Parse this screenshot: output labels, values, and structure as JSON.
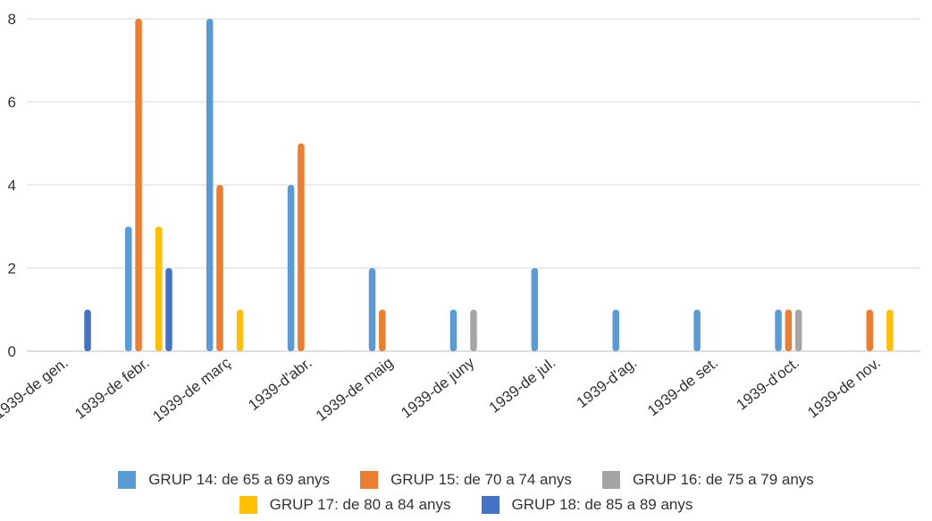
{
  "chart_data": {
    "type": "bar",
    "categories": [
      "1939-de gen.",
      "1939-de febr.",
      "1939-de març",
      "1939-d'abr.",
      "1939-de maig",
      "1939-de juny",
      "1939-de jul.",
      "1939-d'ag.",
      "1939-de set.",
      "1939-d'oct.",
      "1939-de nov."
    ],
    "series": [
      {
        "name": "GRUP 14: de 65 a 69 anys",
        "color": "#5B9BD5",
        "values": [
          0,
          3,
          8,
          4,
          2,
          1,
          2,
          1,
          1,
          1,
          0
        ]
      },
      {
        "name": "GRUP 15: de 70 a 74 anys",
        "color": "#ED7D31",
        "values": [
          0,
          8,
          4,
          5,
          1,
          0,
          0,
          0,
          0,
          1,
          1
        ]
      },
      {
        "name": "GRUP 16: de 75 a 79 anys",
        "color": "#A5A5A5",
        "values": [
          0,
          0,
          0,
          0,
          0,
          1,
          0,
          0,
          0,
          1,
          0
        ]
      },
      {
        "name": "GRUP 17: de 80 a 84 anys",
        "color": "#FFC000",
        "values": [
          0,
          3,
          1,
          0,
          0,
          0,
          0,
          0,
          0,
          0,
          1
        ]
      },
      {
        "name": "GRUP 18: de 85 a 89 anys",
        "color": "#4472C4",
        "values": [
          1,
          2,
          0,
          0,
          0,
          0,
          0,
          0,
          0,
          0,
          0
        ]
      }
    ],
    "yticks": [
      0,
      2,
      4,
      6,
      8
    ],
    "ylim": [
      0,
      8
    ],
    "grid": true,
    "legend": "bottom"
  }
}
